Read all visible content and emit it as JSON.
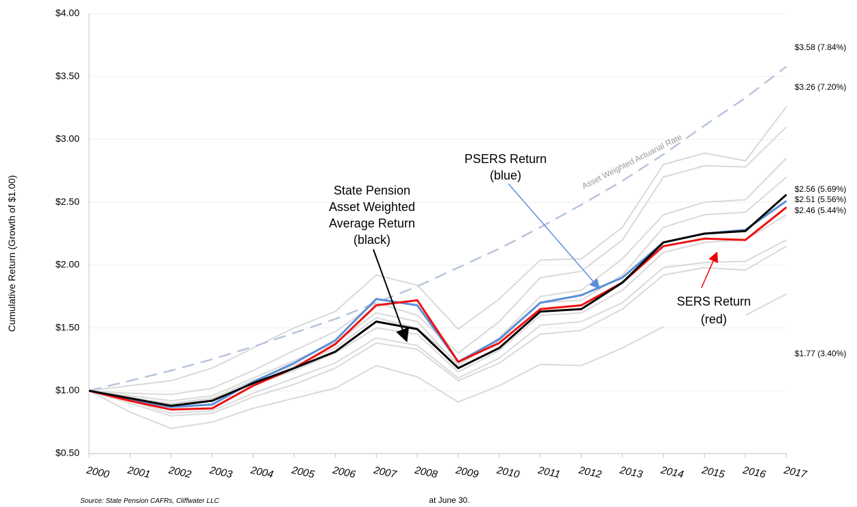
{
  "chart_data": {
    "type": "line",
    "y_label": "Cumulative Return (Growth of $1.00)",
    "x_label": "at June 30.",
    "source": "Source: State Pension CAFRs, Cliffwater LLC",
    "categories": [
      "2000",
      "2001",
      "2002",
      "2003",
      "2004",
      "2005",
      "2006",
      "2007",
      "2008",
      "2009",
      "2010",
      "2011",
      "2012",
      "2013",
      "2014",
      "2015",
      "2016",
      "2017"
    ],
    "ylim": [
      0.5,
      4.0
    ],
    "yticks": [
      {
        "value": 0.5,
        "label": "$0.50"
      },
      {
        "value": 1.0,
        "label": "$1.00"
      },
      {
        "value": 1.5,
        "label": "$1.50"
      },
      {
        "value": 2.0,
        "label": "$2.00"
      },
      {
        "value": 2.5,
        "label": "$2.50"
      },
      {
        "value": 3.0,
        "label": "$3.00"
      },
      {
        "value": 3.5,
        "label": "$3.50"
      },
      {
        "value": 4.0,
        "label": "$4.00"
      }
    ],
    "grid": true,
    "series": [
      {
        "color": "#d9d9d9",
        "values": [
          1.0,
          1.04,
          1.08,
          1.18,
          1.34,
          1.5,
          1.63,
          1.92,
          1.84,
          1.49,
          1.73,
          2.04,
          2.05,
          2.3,
          2.8,
          2.89,
          2.83,
          3.26
        ],
        "end_label": "$3.26 (7.20%)"
      },
      {
        "color": "#d9d9d9",
        "values": [
          1.0,
          0.83,
          0.7,
          0.75,
          0.86,
          0.94,
          1.02,
          1.2,
          1.11,
          0.91,
          1.04,
          1.21,
          1.2,
          1.34,
          1.51,
          null,
          1.6,
          1.77
        ],
        "end_label": "$1.77 (3.40%)"
      },
      {
        "color": "#d9d9d9",
        "values": [
          1.0,
          0.96,
          0.92,
          0.96,
          1.1,
          1.24,
          1.38,
          1.62,
          1.55,
          1.2,
          1.42,
          1.75,
          1.8,
          2.05,
          2.4,
          2.5,
          2.52,
          2.85
        ]
      },
      {
        "color": "#d9d9d9",
        "values": [
          1.0,
          0.92,
          0.82,
          0.84,
          0.98,
          1.1,
          1.22,
          1.42,
          1.36,
          1.1,
          1.26,
          1.52,
          1.55,
          1.7,
          1.98,
          2.02,
          2.03,
          2.2
        ]
      },
      {
        "color": "#d9d9d9",
        "values": [
          1.0,
          0.94,
          0.9,
          0.94,
          1.08,
          1.2,
          1.34,
          1.58,
          1.5,
          1.22,
          1.4,
          1.7,
          1.72,
          1.92,
          2.3,
          2.4,
          2.42,
          2.7
        ]
      },
      {
        "color": "#d9d9d9",
        "values": [
          1.0,
          0.9,
          0.8,
          0.82,
          0.95,
          1.05,
          1.18,
          1.38,
          1.33,
          1.08,
          1.22,
          1.45,
          1.48,
          1.65,
          1.92,
          1.98,
          1.96,
          2.15
        ]
      },
      {
        "color": "#d9d9d9",
        "values": [
          1.0,
          0.98,
          0.97,
          1.02,
          1.16,
          1.32,
          1.47,
          1.7,
          1.6,
          1.3,
          1.55,
          1.9,
          1.95,
          2.2,
          2.7,
          2.79,
          2.78,
          3.1
        ]
      },
      {
        "color": "#d9d9d9",
        "values": [
          1.0,
          0.95,
          0.89,
          0.93,
          1.05,
          1.16,
          1.3,
          1.5,
          1.45,
          1.15,
          1.32,
          1.6,
          1.62,
          1.8,
          2.1,
          2.18,
          2.2,
          2.4
        ]
      },
      {
        "color": "#b8c4dc",
        "dashed": true,
        "values": [
          1.0,
          1.08,
          1.16,
          1.25,
          1.35,
          1.46,
          1.57,
          1.7,
          1.83,
          1.98,
          2.13,
          2.3,
          2.48,
          2.67,
          2.88,
          3.11,
          3.33,
          3.58
        ],
        "end_label": "$3.58 (7.84%)"
      },
      {
        "color": "#5b8fd6",
        "values": [
          1.0,
          0.93,
          0.87,
          0.89,
          1.07,
          1.22,
          1.4,
          1.73,
          1.68,
          1.23,
          1.41,
          1.7,
          1.76,
          1.9,
          2.18,
          2.25,
          2.28,
          2.51
        ],
        "end_label": "$2.51 (5.56%)"
      },
      {
        "color": "#ee1111",
        "values": [
          1.0,
          0.92,
          0.85,
          0.86,
          1.04,
          1.18,
          1.37,
          1.68,
          1.72,
          1.23,
          1.38,
          1.65,
          1.68,
          1.86,
          2.15,
          2.21,
          2.2,
          2.46
        ],
        "end_label": "$2.46 (5.44%)"
      },
      {
        "color": "#000000",
        "values": [
          1.0,
          0.94,
          0.88,
          0.92,
          1.06,
          1.18,
          1.31,
          1.55,
          1.49,
          1.18,
          1.34,
          1.63,
          1.65,
          1.86,
          2.18,
          2.25,
          2.27,
          2.56
        ],
        "end_label": "$2.56 (5.69%)"
      }
    ],
    "annotations": [
      {
        "lines": [
          "State Pension",
          "Asset Weighted",
          "Average Return",
          "(black)"
        ]
      },
      {
        "lines": [
          "PSERS Return",
          "(blue)"
        ]
      },
      {
        "lines": [
          "SERS Return",
          "(red)"
        ]
      },
      {
        "lines": [
          "Asset Weighted Actuarial Rate"
        ]
      }
    ]
  }
}
